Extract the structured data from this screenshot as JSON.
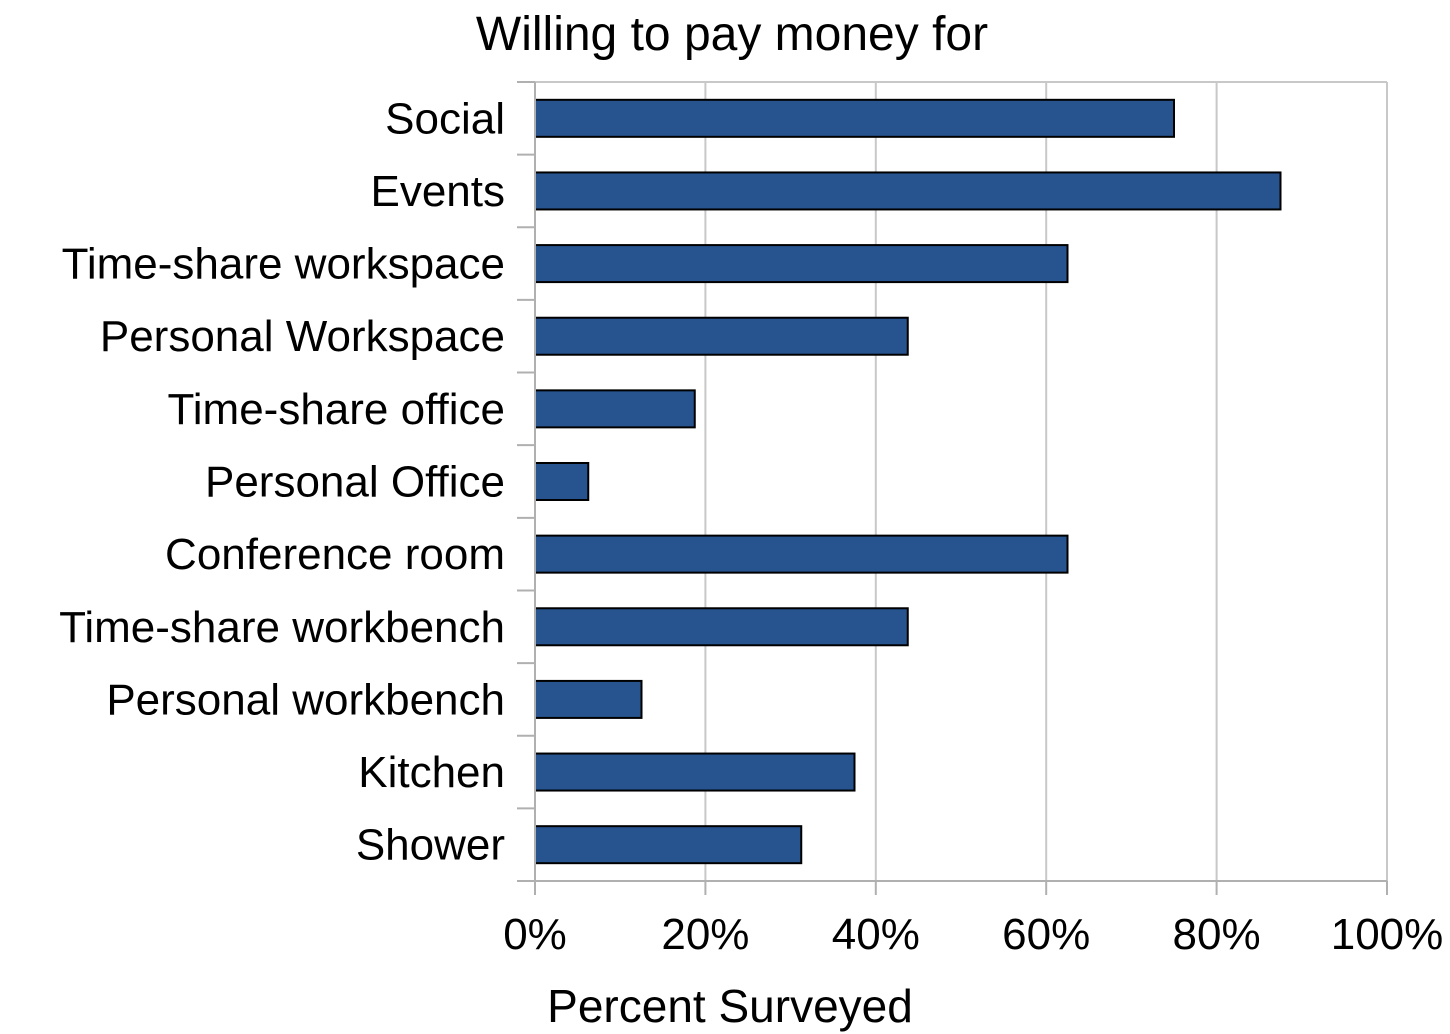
{
  "chart_data": {
    "type": "bar",
    "orientation": "horizontal",
    "title": "Willing to pay money for",
    "xlabel": "Percent Surveyed",
    "ylabel": "",
    "categories": [
      "Social",
      "Events",
      "Time-share workspace",
      "Personal Workspace",
      "Time-share office",
      "Personal Office",
      "Conference room",
      "Time-share workbench",
      "Personal workbench",
      "Kitchen",
      "Shower"
    ],
    "values": [
      75,
      87.5,
      62.5,
      43.75,
      18.75,
      6.25,
      62.5,
      43.75,
      12.5,
      37.5,
      31.25
    ],
    "xlim": [
      0,
      100
    ],
    "ticks": [
      "0%",
      "20%",
      "40%",
      "60%",
      "80%",
      "100%"
    ],
    "tick_values": [
      0,
      20,
      40,
      60,
      80,
      100
    ],
    "grid": true,
    "legend": "none",
    "bar_color": "#27548f",
    "bar_edge_color": "#000000",
    "grid_color": "#c8c8c8"
  }
}
